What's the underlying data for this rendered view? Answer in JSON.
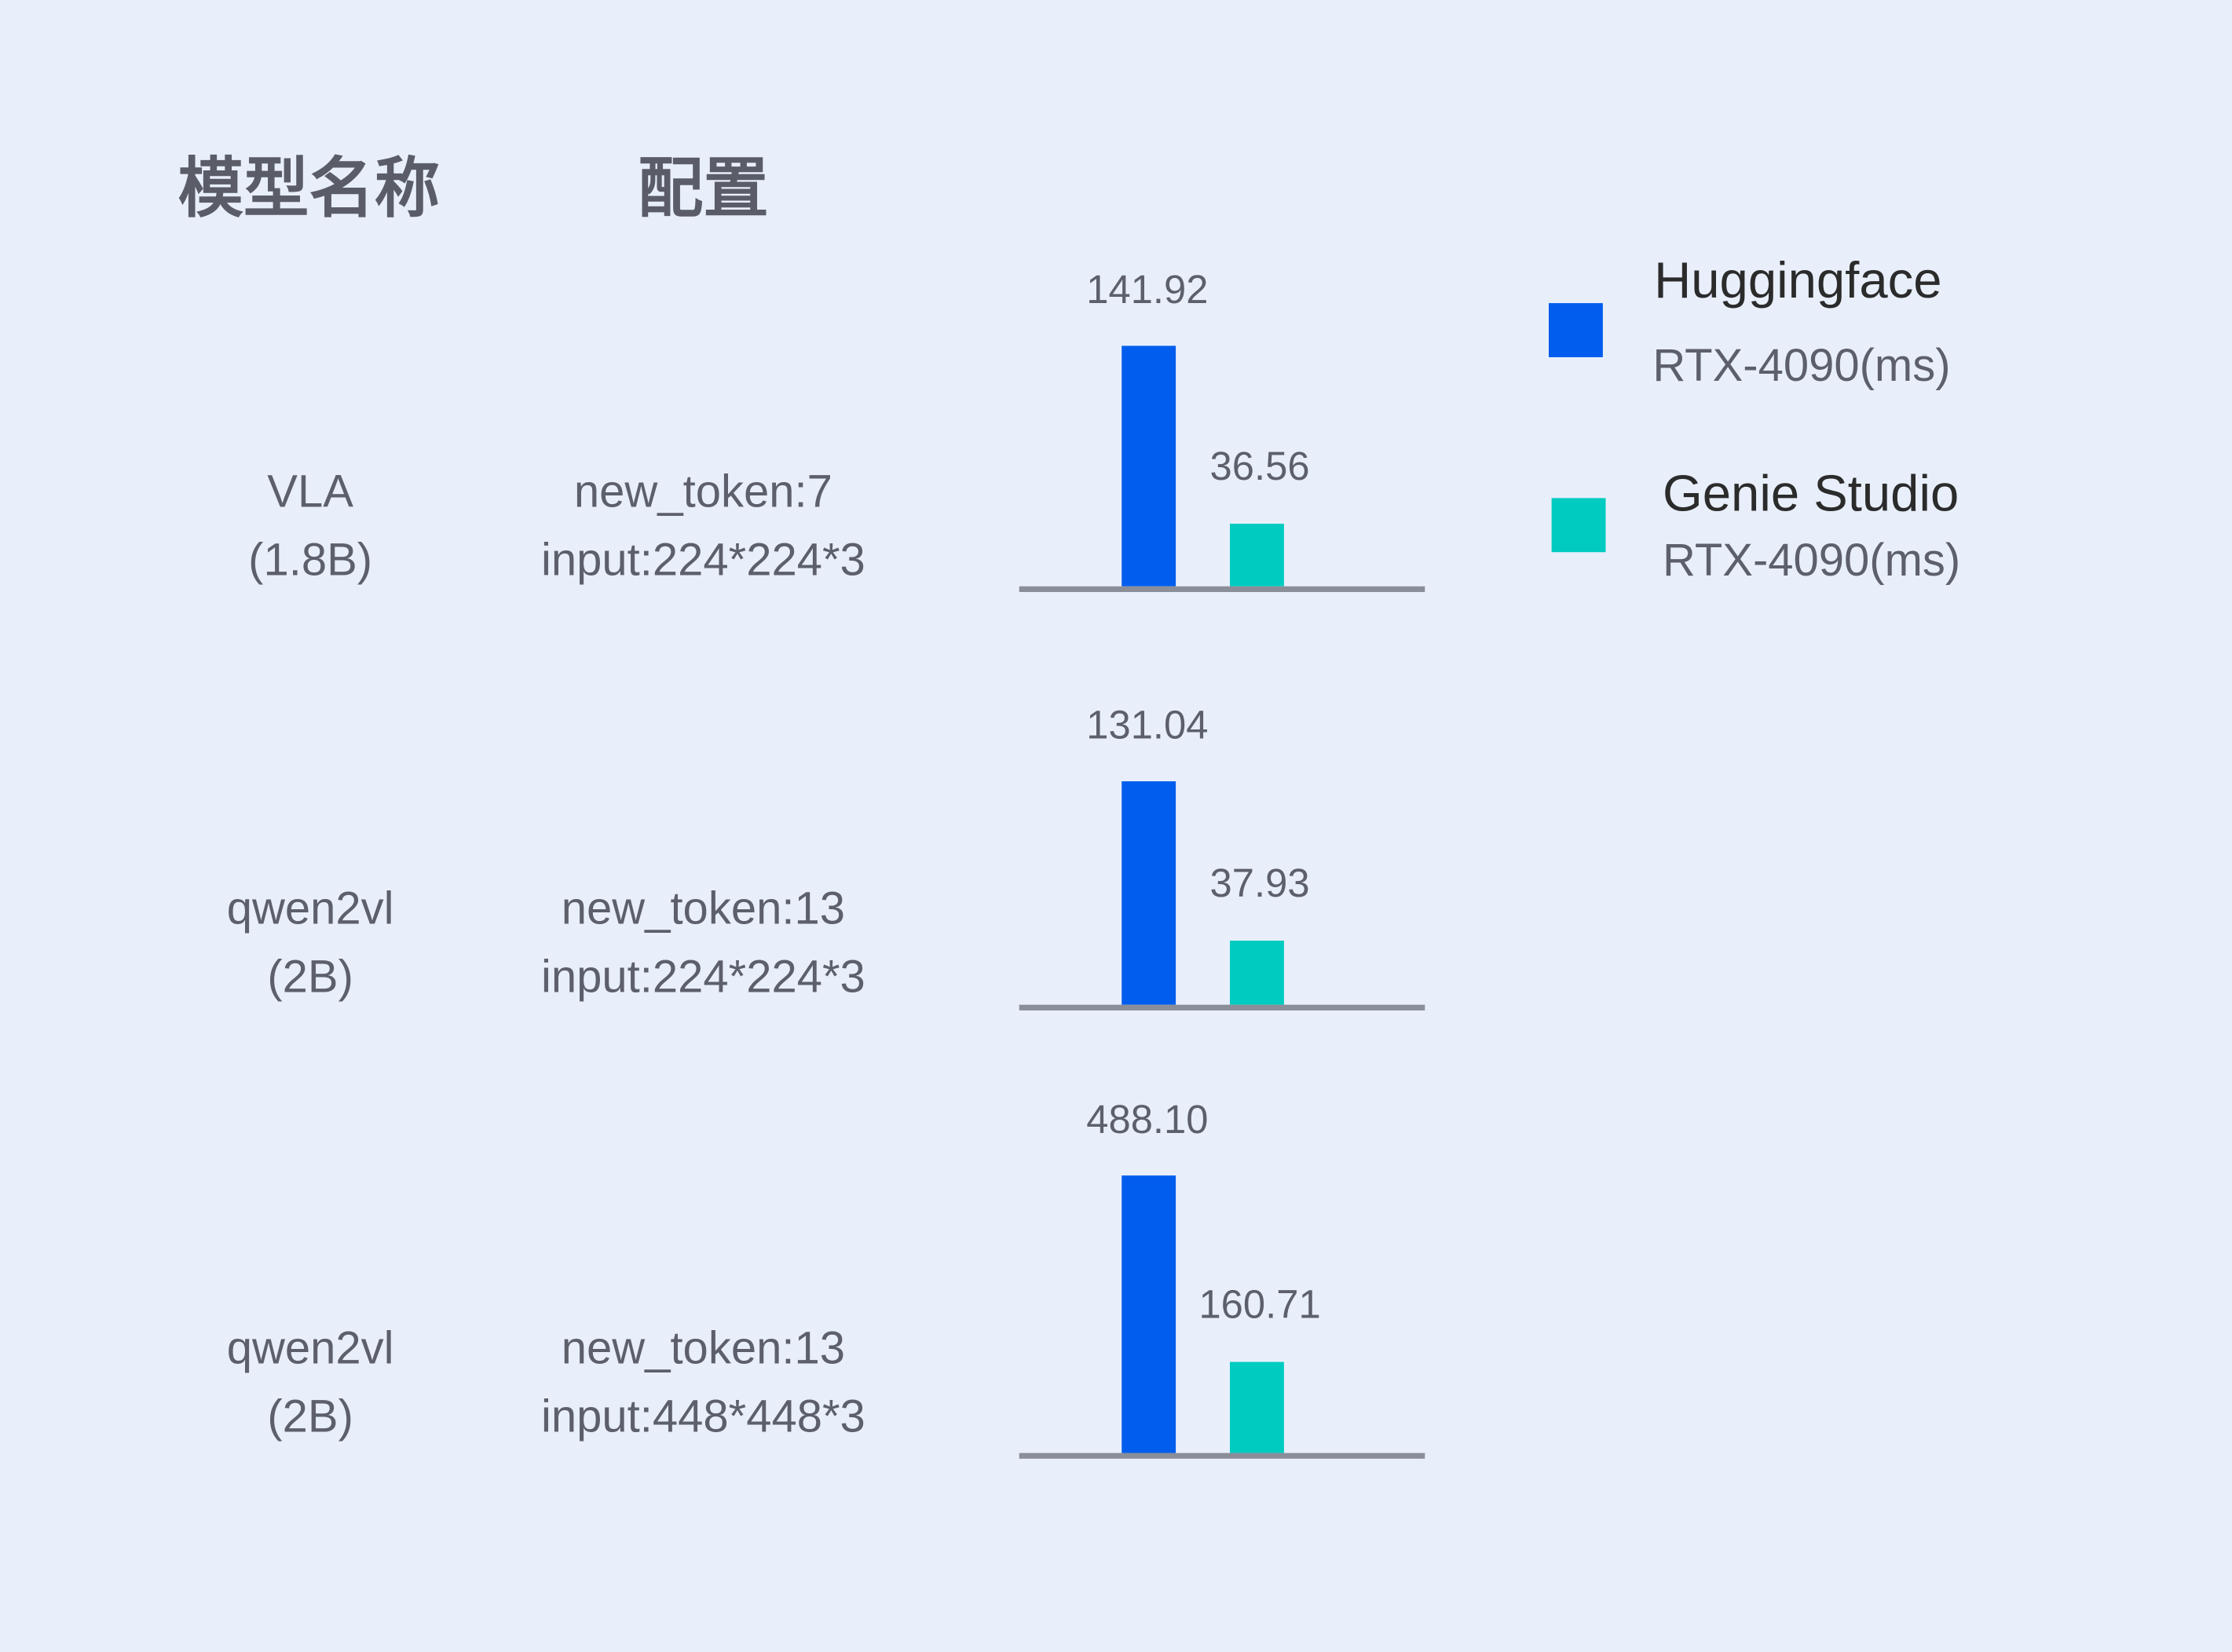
{
  "headers": {
    "model": "模型名称",
    "config": "配置"
  },
  "chart_data": {
    "type": "bar",
    "categories": [
      "VLA (1.8B) new_token:7 input:224*224*3",
      "qwen2vl (2B) new_token:13 input:224*224*3",
      "qwen2vl (2B) new_token:13 input:448*448*3"
    ],
    "rows": [
      {
        "model_line1": "VLA",
        "model_line2": "(1.8B)",
        "config_line1": "new_token:7",
        "config_line2": "input:224*224*3",
        "hf": 141.92,
        "hf_label": "141.92",
        "genie": 36.56,
        "genie_label": "36.56"
      },
      {
        "model_line1": "qwen2vl",
        "model_line2": "(2B)",
        "config_line1": "new_token:13",
        "config_line2": "input:224*224*3",
        "hf": 131.04,
        "hf_label": "131.04",
        "genie": 37.93,
        "genie_label": "37.93"
      },
      {
        "model_line1": "qwen2vl",
        "model_line2": "(2B)",
        "config_line1": "new_token:13",
        "config_line2": "input:448*448*3",
        "hf": 488.1,
        "hf_label": "488.10",
        "genie": 160.71,
        "genie_label": "160.71"
      }
    ],
    "series": [
      {
        "name": "Huggingface",
        "unit": "RTX-4090(ms)",
        "color": "#005ded"
      },
      {
        "name": "Genie Studio",
        "unit": "RTX-4090(ms)",
        "color": "#00cbc0"
      }
    ],
    "legend": "right",
    "grid": false,
    "axis_color": "#8a8e99"
  }
}
